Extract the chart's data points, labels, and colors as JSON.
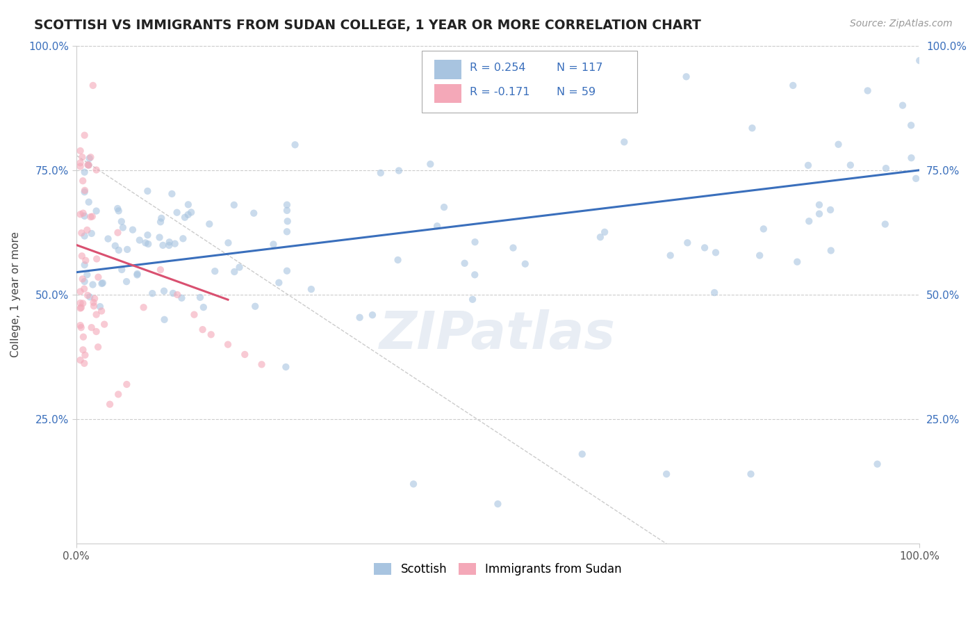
{
  "title": "SCOTTISH VS IMMIGRANTS FROM SUDAN COLLEGE, 1 YEAR OR MORE CORRELATION CHART",
  "source": "Source: ZipAtlas.com",
  "ylabel": "College, 1 year or more",
  "xlim": [
    0.0,
    1.0
  ],
  "ylim": [
    0.0,
    1.0
  ],
  "xtick_labels": [
    "0.0%",
    "100.0%"
  ],
  "ytick_labels": [
    "25.0%",
    "50.0%",
    "75.0%",
    "100.0%"
  ],
  "ytick_positions": [
    0.25,
    0.5,
    0.75,
    1.0
  ],
  "watermark": "ZIPatlas",
  "legend_R1": "R = 0.254",
  "legend_N1": "N = 117",
  "legend_R2": "R = -0.171",
  "legend_N2": "N = 59",
  "scatter_color_blue": "#a8c4e0",
  "scatter_color_pink": "#f4a8b8",
  "line_color_blue": "#3a6fbc",
  "line_color_pink": "#d95070",
  "line_color_gray": "#cccccc",
  "grid_color": "#cccccc",
  "background_color": "#ffffff",
  "title_color": "#222222",
  "legend_text_color": "#3a6fbc",
  "blue_line_x": [
    0.0,
    1.0
  ],
  "blue_line_y": [
    0.545,
    0.75
  ],
  "pink_line_x": [
    0.0,
    0.18
  ],
  "pink_line_y": [
    0.6,
    0.49
  ],
  "gray_line_x": [
    0.0,
    0.7
  ],
  "gray_line_y": [
    0.78,
    0.0
  ],
  "scatter_size": 55,
  "scatter_alpha": 0.6,
  "line_lw": 2.2
}
